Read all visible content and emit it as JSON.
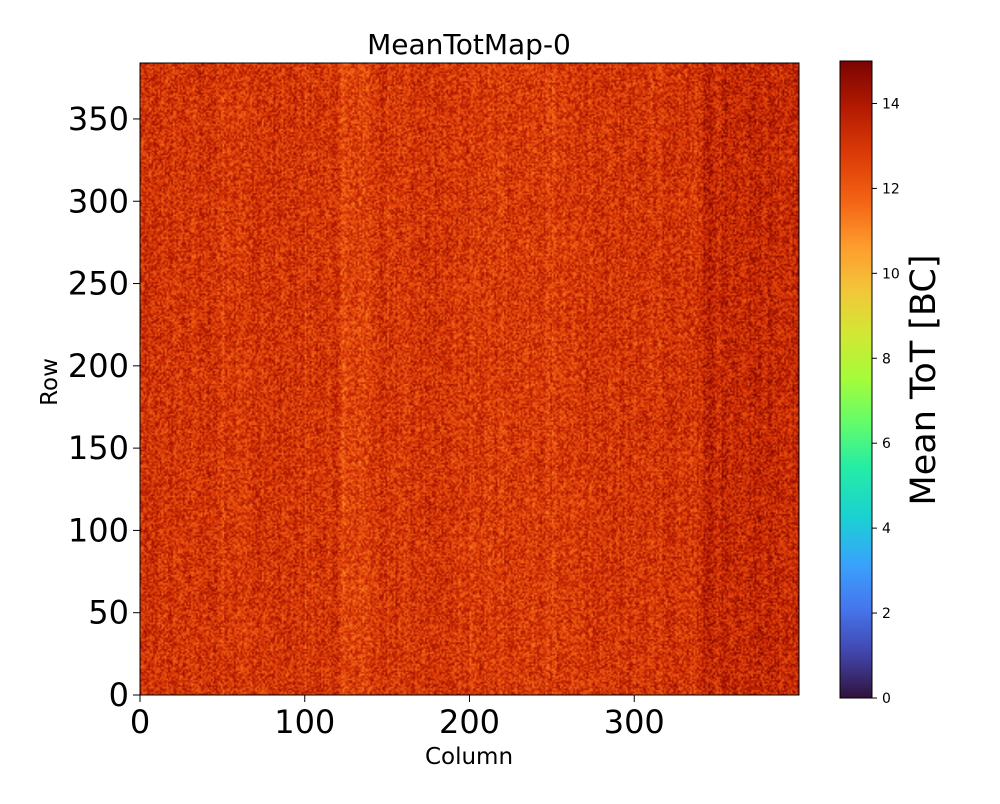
{
  "chart_data": {
    "type": "heatmap",
    "title": "MeanTotMap-0",
    "xlabel": "Column",
    "ylabel": "Row",
    "xlim": [
      0,
      400
    ],
    "ylim": [
      0,
      384
    ],
    "x_ticks": [
      0,
      100,
      200,
      300
    ],
    "y_ticks": [
      0,
      50,
      100,
      150,
      200,
      250,
      300,
      350
    ],
    "x_tick_labels": [
      "0",
      "100",
      "200",
      "300"
    ],
    "y_tick_labels": [
      "0",
      "50",
      "100",
      "150",
      "200",
      "250",
      "300",
      "350"
    ],
    "n_columns": 400,
    "n_rows": 384,
    "value_range_observed": [
      10,
      15
    ],
    "typical_value": 13,
    "colormap": "turbo",
    "colorbar": {
      "label": "Mean ToT [BC]",
      "range": [
        0,
        15
      ],
      "ticks": [
        0,
        2,
        4,
        6,
        8,
        10,
        12,
        14
      ],
      "tick_labels": [
        "0",
        "2",
        "4",
        "6",
        "8",
        "10",
        "12",
        "14"
      ]
    },
    "grid": false
  }
}
